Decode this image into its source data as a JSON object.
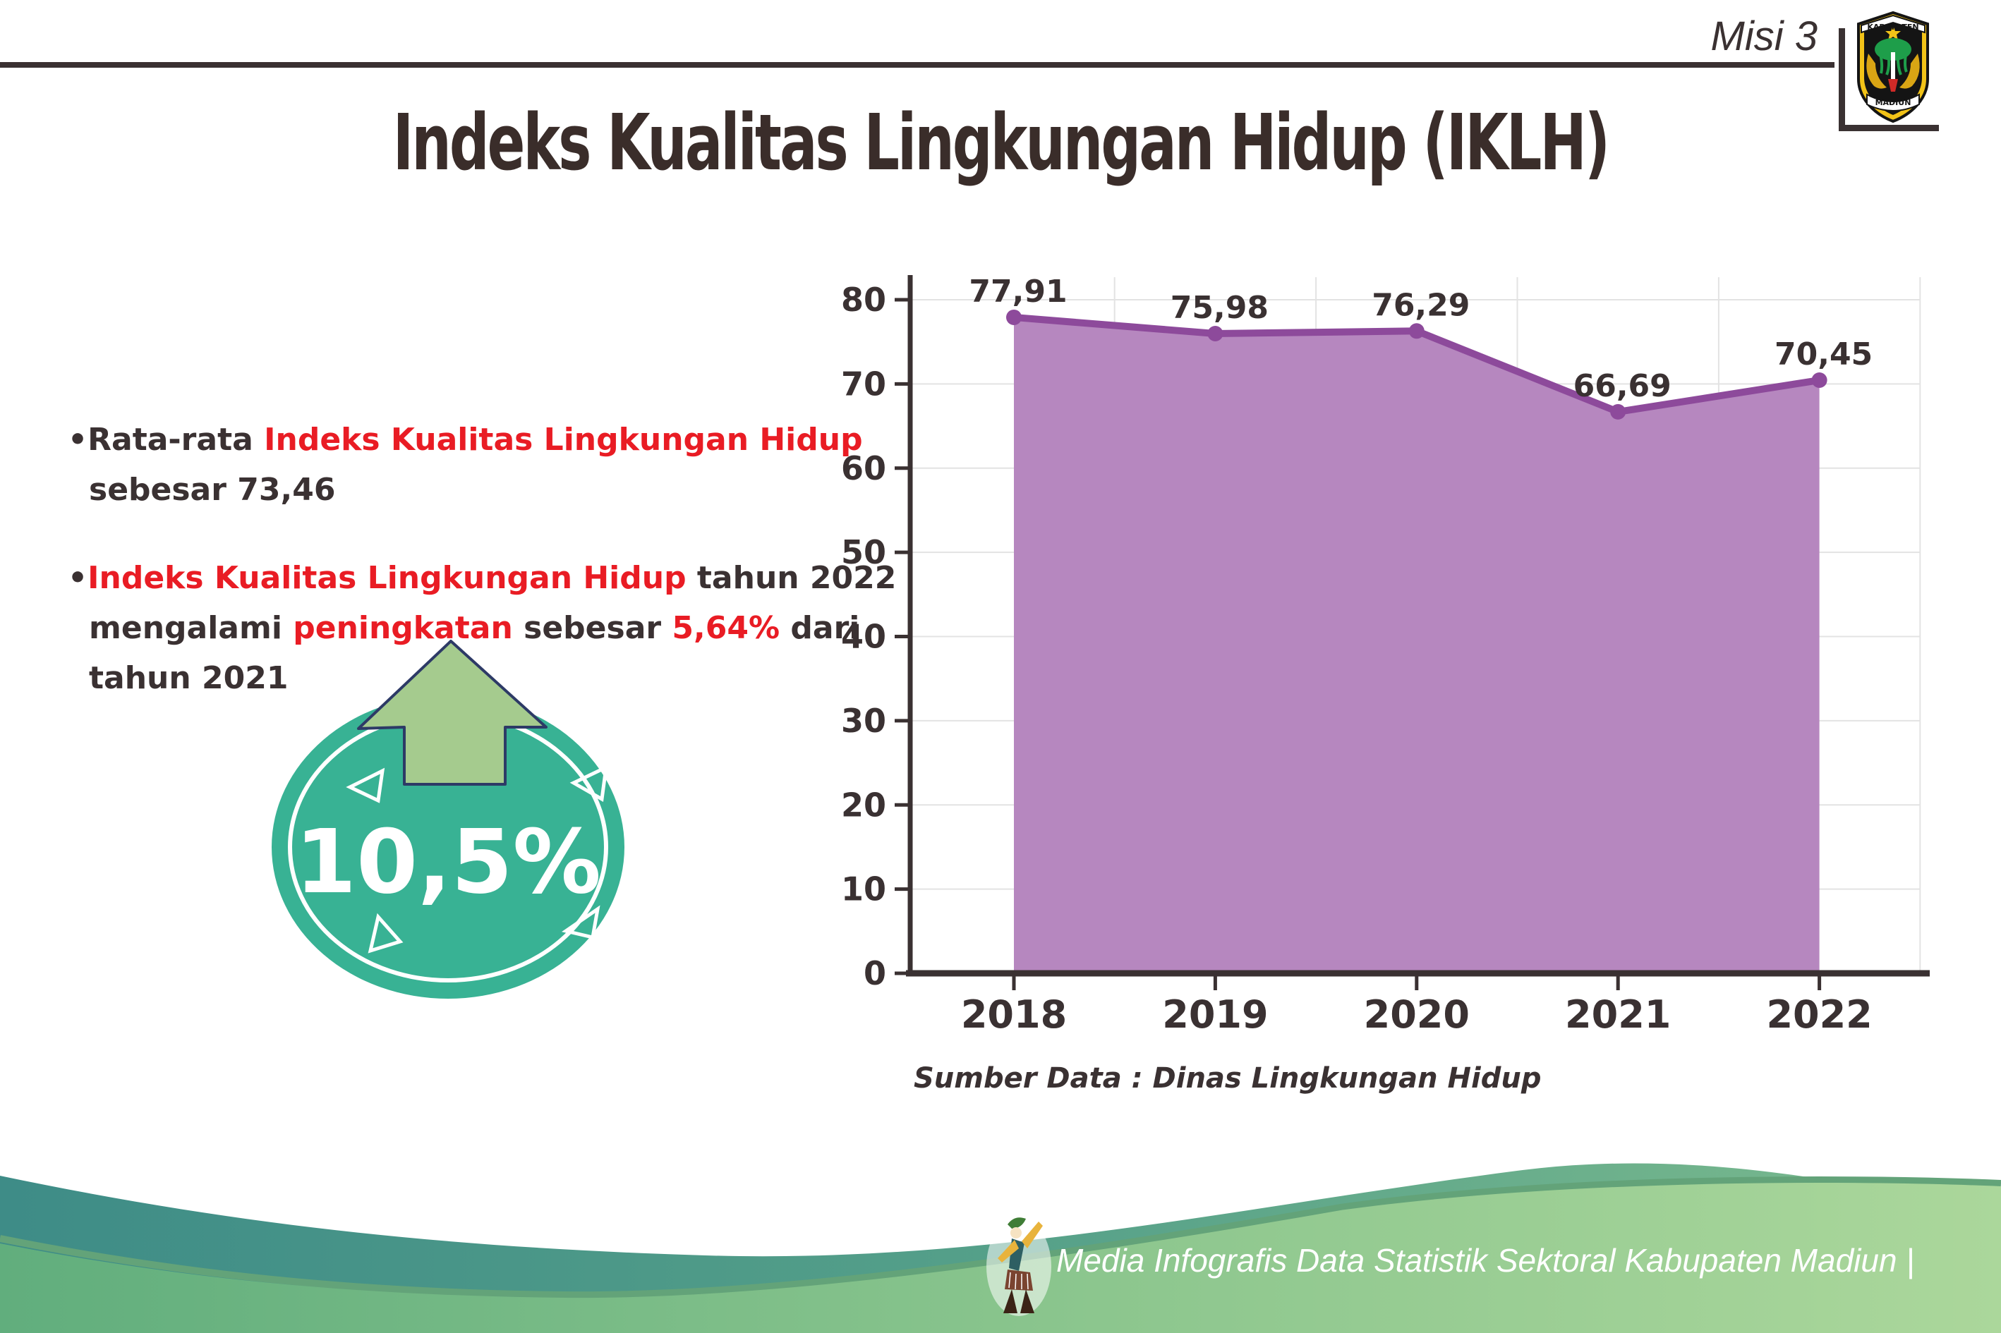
{
  "header": {
    "misi_label": "Misi 3",
    "title": "Indeks Kualitas Lingkungan Hidup (IKLH)",
    "logo": {
      "top_ribbon": "KABUPATEN",
      "bottom_ribbon": "MADIUN"
    }
  },
  "bullets": {
    "b1": [
      {
        "t": "Rata-rata "
      },
      {
        "t": "Indeks Kualitas Lingkungan Hidup"
      }
    ],
    "b1_line2": "sebesar 73,46",
    "b2": [
      {
        "t": "Indeks Kualitas Lingkungan Hidup"
      },
      {
        "t": " tahun 2022 mengalami "
      },
      {
        "t": "peningkatan"
      },
      {
        "t": " sebesar "
      },
      {
        "t": "5,64%"
      },
      {
        "t": " dari tahun 2021"
      }
    ]
  },
  "badge": {
    "value": "10,5%"
  },
  "chart_data": {
    "type": "area",
    "categories": [
      "2018",
      "2019",
      "2020",
      "2021",
      "2022"
    ],
    "values": [
      77.91,
      75.98,
      76.29,
      66.69,
      70.45
    ],
    "value_labels": [
      "77,91",
      "75,98",
      "76,29",
      "66,69",
      "70,45"
    ],
    "yticks": [
      "0",
      "10",
      "20",
      "30",
      "40",
      "50",
      "60",
      "70",
      "80"
    ],
    "ylim": [
      0,
      80
    ],
    "title": "",
    "xlabel": "",
    "ylabel": "",
    "grid": "on",
    "legend": "none",
    "source": "Sumber Data : Dinas Lingkungan Hidup",
    "line_color": "#8d4a9b",
    "fill_color": "#b687bf",
    "grid_color": "#e3e3e3",
    "axis_color": "#3a3132"
  },
  "footer": {
    "credit": "Media Infografis Data Statistik Sektoral Kabupaten Madiun |"
  },
  "colors": {
    "ink": "#3a3132",
    "red": "#e91c24",
    "badge_teal": "#38b294",
    "arrow_green": "#a5cb8e",
    "footer_teal": "#3e8c87",
    "footer_green": "#8cc68e"
  }
}
